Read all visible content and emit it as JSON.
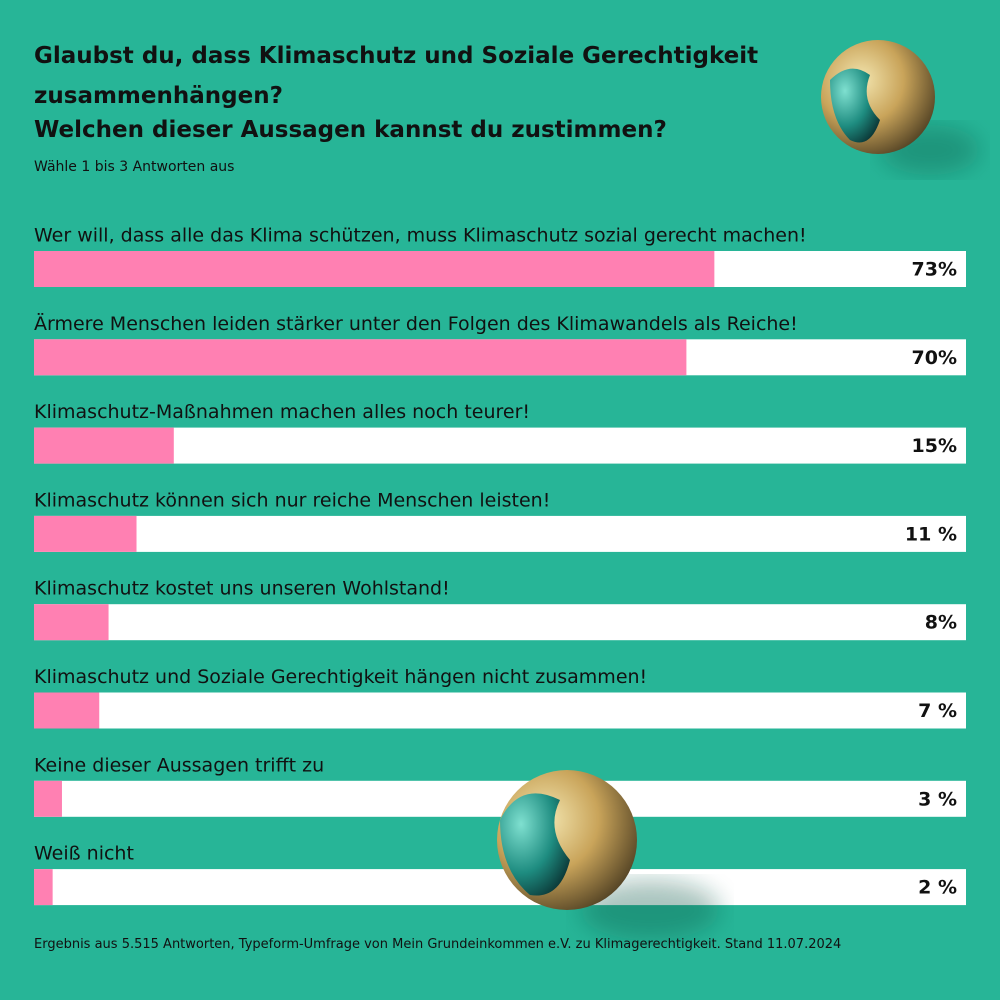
{
  "chart_data": {
    "type": "bar",
    "title": "Glaubst du, dass Klimaschutz und Soziale Gerechtigkeit zusammenhängen?",
    "subtitle": "Welchen dieser Aussagen kannst du zustimmen?",
    "instruction": "Wähle 1 bis 3 Antworten aus",
    "note": "Ergebnis aus 5.515 Antworten, Typeform-Umfrage von Mein Grundeinkommen e.V. zu Klimagerechtigkeit. Stand 11.07.2024",
    "categories": [
      "Wer will, dass alle das Klima schützen, muss Klimaschutz sozial gerecht machen!",
      "Ärmere Menschen leiden stärker unter den Folgen des Klimawandels als Reiche!",
      "Klimaschutz-Maßnahmen machen alles noch teurer!",
      "Klimaschutz können sich nur reiche Menschen leisten!",
      "Klimaschutz kostet uns unseren Wohlstand!",
      "Klimaschutz und Soziale Gerechtigkeit hängen nicht zusammen!",
      "Keine dieser Aussagen trifft zu",
      "Weiß nicht"
    ],
    "values": [
      73,
      70,
      15,
      11,
      8,
      7,
      3,
      2
    ],
    "value_labels": [
      "73%",
      "70%",
      "15%",
      "11 %",
      "8%",
      "7 %",
      "3 %",
      "2 %"
    ],
    "color": "#ff80b2",
    "xlim": [
      0,
      100
    ]
  }
}
